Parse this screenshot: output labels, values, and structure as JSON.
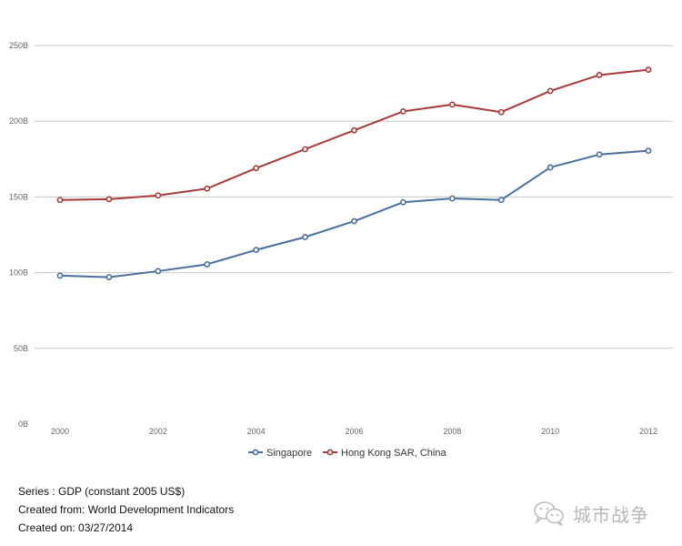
{
  "chart_data": {
    "type": "line",
    "x": [
      2000,
      2001,
      2002,
      2003,
      2004,
      2005,
      2006,
      2007,
      2008,
      2009,
      2010,
      2011,
      2012
    ],
    "series": [
      {
        "name": "Singapore",
        "color": "#4a6f9e",
        "values": [
          98,
          97,
          101,
          105.5,
          115,
          123.5,
          134,
          146.5,
          149,
          148,
          169.5,
          178,
          180.5
        ]
      },
      {
        "name": "Hong Kong SAR, China",
        "color": "#a83a3a",
        "values": [
          148,
          148.5,
          151,
          155.5,
          169,
          181.5,
          194,
          206.5,
          211,
          206,
          220,
          230.5,
          234
        ]
      }
    ],
    "ylim": [
      0,
      250
    ],
    "yticks": [
      0,
      50,
      100,
      150,
      200,
      250
    ],
    "ytick_labels": [
      "0B",
      "50B",
      "100B",
      "150B",
      "200B",
      "250B"
    ],
    "xticks": [
      2000,
      2002,
      2004,
      2006,
      2008,
      2010,
      2012
    ],
    "xtick_labels": [
      "2000",
      "2002",
      "2004",
      "2006",
      "2008",
      "2010",
      "2012"
    ],
    "grid": true,
    "legend": "bottom-center"
  },
  "footer": {
    "series": "Series : GDP (constant 2005 US$)",
    "created_from": "Created from: World Development Indicators",
    "created_on": "Created on: 03/27/2014"
  },
  "watermark": {
    "text": "城市战争",
    "icon": "wechat-icon"
  }
}
